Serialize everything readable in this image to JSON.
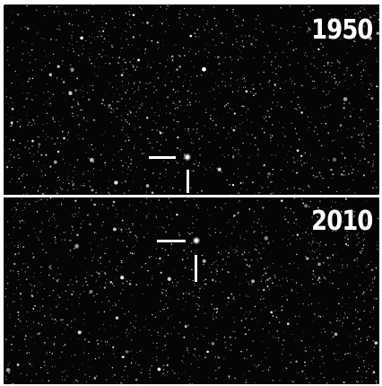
{
  "panels": [
    {
      "year": "1950",
      "target_star": "star-icon",
      "markers": [
        "horizontal-marker-icon",
        "vertical-marker-icon"
      ]
    },
    {
      "year": "2010",
      "target_star": "star-icon",
      "markers": [
        "horizontal-marker-icon",
        "vertical-marker-icon"
      ]
    }
  ],
  "colors": {
    "sky": "#050505",
    "stars": "#ffffff",
    "divider": "#f4f4f4",
    "label": "#ffffff"
  }
}
